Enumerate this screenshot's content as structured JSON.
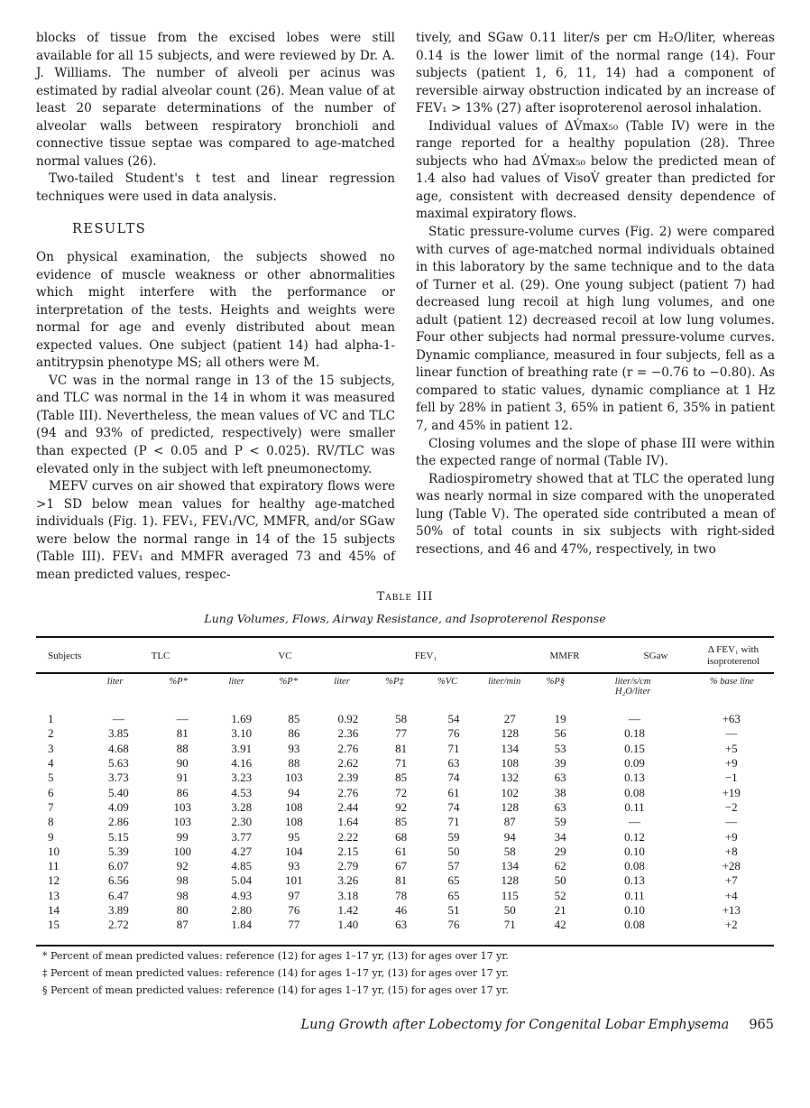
{
  "left_column": {
    "paragraphs_before": [
      "blocks of tissue from the excised lobes were still available for all 15 subjects, and were reviewed by Dr. A. J. Williams. The number of alveoli per acinus was estimated by radial alveolar count (26). Mean value of at least 20 separate determinations of the number of alveolar walls between respiratory bronchioli and connective tissue septae was compared to age-matched normal values (26).",
      "Two-tailed Student's t test and linear regression techniques were used in data analysis."
    ],
    "heading": "RESULTS",
    "paragraphs_after": [
      "On physical examination, the subjects showed no evidence of muscle weakness or other abnormalities which might interfere with the performance or interpretation of the tests. Heights and weights were normal for age and evenly distributed about mean expected values. One subject (patient 14) had alpha-1-antitrypsin phenotype MS; all others were M.",
      "VC was in the normal range in 13 of the 15 subjects, and TLC was normal in the 14 in whom it was measured (Table III). Nevertheless, the mean values of VC and TLC (94 and 93% of predicted, respectively) were smaller than expected (P < 0.05 and P < 0.025). RV/TLC was elevated only in the subject with left pneumonectomy.",
      "MEFV curves on air showed that expiratory flows were >1 SD below mean values for healthy age-matched individuals (Fig. 1). FEV₁, FEV₁/VC, MMFR, and/or SGaw were below the normal range in 14 of the 15 subjects (Table III). FEV₁ and MMFR averaged 73 and 45% of mean predicted values, respec-"
    ]
  },
  "right_column": {
    "paragraphs": [
      "tively, and SGaw 0.11 liter/s per cm H₂O/liter, whereas 0.14 is the lower limit of the normal range (14). Four subjects (patient 1, 6, 11, 14) had a component of reversible airway obstruction indicated by an increase of FEV₁ > 13% (27) after isoproterenol aerosol inhalation.",
      "Individual values of ΔV̇max₅₀ (Table IV) were in the range reported for a healthy population (28). Three subjects who had ΔV̇max₅₀ below the predicted mean of 1.4 also had values of VisoV̇ greater than predicted for age, consistent with decreased density dependence of maximal expiratory flows.",
      "Static pressure-volume curves (Fig. 2) were compared with curves of age-matched normal individuals obtained in this laboratory by the same technique and to the data of Turner et al. (29). One young subject (patient 7) had decreased lung recoil at high lung volumes, and one adult (patient 12) decreased recoil at low lung volumes. Four other subjects had normal pressure-volume curves. Dynamic compliance, measured in four subjects, fell as a linear function of breathing rate (r = −0.76 to −0.80). As compared to static values, dynamic compliance at 1 Hz fell by 28% in patient 3, 65% in patient 6, 35% in patient 7, and 45% in patient 12.",
      "Closing volumes and the slope of phase III were within the expected range of normal (Table IV).",
      "Radiospirometry showed that at TLC the operated lung was nearly normal in size compared with the unoperated lung (Table V). The operated side contributed a mean of 50% of total counts in six subjects with right-sided resections, and 46 and 47%, respectively, in two"
    ]
  },
  "table": {
    "title": "Table III",
    "subtitle": "Lung Volumes, Flows, Airway Resistance, and Isoproterenol Response",
    "group_headers": [
      "Subjects",
      "TLC",
      "VC",
      "FEV₁",
      "MMFR",
      "SGaw",
      "Δ FEV₁ with isoproterenol"
    ],
    "unit_headers": [
      "",
      "liter",
      "%P*",
      "liter",
      "%P*",
      "liter",
      "%P‡",
      "%VC",
      "liter/min",
      "%P§",
      "liter/s/cm H₂O/liter",
      "% base line"
    ],
    "rows": [
      [
        "1",
        "—",
        "—",
        "1.69",
        "85",
        "0.92",
        "58",
        "54",
        "27",
        "19",
        "—",
        "+63"
      ],
      [
        "2",
        "3.85",
        "81",
        "3.10",
        "86",
        "2.36",
        "77",
        "76",
        "128",
        "56",
        "0.18",
        "—"
      ],
      [
        "3",
        "4.68",
        "88",
        "3.91",
        "93",
        "2.76",
        "81",
        "71",
        "134",
        "53",
        "0.15",
        "+5"
      ],
      [
        "4",
        "5.63",
        "90",
        "4.16",
        "88",
        "2.62",
        "71",
        "63",
        "108",
        "39",
        "0.09",
        "+9"
      ],
      [
        "5",
        "3.73",
        "91",
        "3.23",
        "103",
        "2.39",
        "85",
        "74",
        "132",
        "63",
        "0.13",
        "−1"
      ],
      [
        "6",
        "5.40",
        "86",
        "4.53",
        "94",
        "2.76",
        "72",
        "61",
        "102",
        "38",
        "0.08",
        "+19"
      ],
      [
        "7",
        "4.09",
        "103",
        "3.28",
        "108",
        "2.44",
        "92",
        "74",
        "128",
        "63",
        "0.11",
        "−2"
      ],
      [
        "8",
        "2.86",
        "103",
        "2.30",
        "108",
        "1.64",
        "85",
        "71",
        "87",
        "59",
        "—",
        "—"
      ],
      [
        "9",
        "5.15",
        "99",
        "3.77",
        "95",
        "2.22",
        "68",
        "59",
        "94",
        "34",
        "0.12",
        "+9"
      ],
      [
        "10",
        "5.39",
        "100",
        "4.27",
        "104",
        "2.15",
        "61",
        "50",
        "58",
        "29",
        "0.10",
        "+8"
      ],
      [
        "11",
        "6.07",
        "92",
        "4.85",
        "93",
        "2.79",
        "67",
        "57",
        "134",
        "62",
        "0.08",
        "+28"
      ],
      [
        "12",
        "6.56",
        "98",
        "5.04",
        "101",
        "3.26",
        "81",
        "65",
        "128",
        "50",
        "0.13",
        "+7"
      ],
      [
        "13",
        "6.47",
        "98",
        "4.93",
        "97",
        "3.18",
        "78",
        "65",
        "115",
        "52",
        "0.11",
        "+4"
      ],
      [
        "14",
        "3.89",
        "80",
        "2.80",
        "76",
        "1.42",
        "46",
        "51",
        "50",
        "21",
        "0.10",
        "+13"
      ],
      [
        "15",
        "2.72",
        "87",
        "1.84",
        "77",
        "1.40",
        "63",
        "76",
        "71",
        "42",
        "0.08",
        "+2"
      ]
    ],
    "footnotes": [
      "* Percent of mean predicted values: reference (12) for ages 1–17 yr, (13) for ages over 17 yr.",
      "‡ Percent of mean predicted values: reference (14) for ages 1–17 yr, (13) for ages over 17 yr.",
      "§ Percent of mean predicted values: reference (14) for ages 1–17 yr, (15) for ages over 17 yr."
    ]
  },
  "footer": {
    "running_title": "Lung Growth after Lobectomy for Congenital Lobar Emphysema",
    "page_number": "965"
  }
}
